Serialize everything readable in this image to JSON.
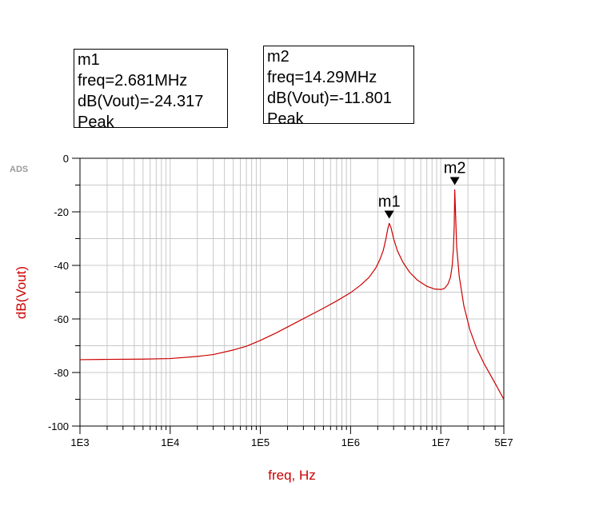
{
  "brand": "ADS",
  "markers": [
    {
      "name": "m1",
      "freq_label": "freq=2.681MHz",
      "value_label": "dB(Vout)=-24.317",
      "type": "Peak"
    },
    {
      "name": "m2",
      "freq_label": "freq=14.29MHz",
      "value_label": "dB(Vout)=-11.801",
      "type": "Peak"
    }
  ],
  "colors": {
    "trace": "#cc0000",
    "axis_label": "#cc0000",
    "grid": "#c8c8c8",
    "marker": "#000000"
  },
  "chart_data": {
    "type": "line",
    "title": "",
    "xlabel": "freq, Hz",
    "ylabel": "dB(Vout)",
    "xscale": "log",
    "xlim": [
      1000,
      50000000
    ],
    "ylim": [
      -100,
      0
    ],
    "x_ticks": [
      {
        "value": 1000,
        "label": "1E3"
      },
      {
        "value": 10000,
        "label": "1E4"
      },
      {
        "value": 100000,
        "label": "1E5"
      },
      {
        "value": 1000000,
        "label": "1E6"
      },
      {
        "value": 10000000,
        "label": "1E7"
      },
      {
        "value": 50000000,
        "label": "5E7"
      }
    ],
    "y_ticks": [
      {
        "value": 0,
        "label": "0"
      },
      {
        "value": -20,
        "label": "-20"
      },
      {
        "value": -40,
        "label": "-40"
      },
      {
        "value": -60,
        "label": "-60"
      },
      {
        "value": -80,
        "label": "-80"
      },
      {
        "value": -100,
        "label": "-100"
      }
    ],
    "grid": true,
    "series": [
      {
        "color": "#cc0000",
        "x": [
          1000,
          2000,
          5000,
          10000,
          20000,
          30000,
          50000,
          70000,
          100000,
          150000,
          200000,
          300000,
          500000,
          700000,
          1000000,
          1300000,
          1600000,
          1900000,
          2100000,
          2300000,
          2450000,
          2580000,
          2681000,
          2800000,
          3000000,
          3300000,
          3800000,
          4500000,
          5500000,
          7000000,
          8500000,
          10000000,
          11000000,
          12000000,
          12800000,
          13400000,
          13800000,
          14100000,
          14290000,
          14500000,
          15000000,
          16000000,
          18000000,
          21000000,
          25000000,
          30000000,
          40000000,
          50000000
        ],
        "y": [
          -75.2,
          -75.1,
          -75.0,
          -74.8,
          -74.0,
          -73.3,
          -71.6,
          -70.2,
          -68.0,
          -65.2,
          -63.0,
          -59.9,
          -56.0,
          -53.3,
          -50.2,
          -47.3,
          -44.5,
          -41.0,
          -38.0,
          -34.5,
          -30.5,
          -26.5,
          -24.3,
          -25.8,
          -30.0,
          -34.5,
          -38.8,
          -42.5,
          -45.5,
          -47.8,
          -48.8,
          -49.0,
          -48.6,
          -47.0,
          -44.5,
          -40.0,
          -34.0,
          -25.0,
          -11.8,
          -18.0,
          -33.0,
          -44.0,
          -55.0,
          -64.0,
          -71.0,
          -76.5,
          -84.0,
          -90.0
        ]
      }
    ],
    "markers": [
      {
        "name": "m1",
        "x": 2681000,
        "y": -24.317
      },
      {
        "name": "m2",
        "x": 14290000,
        "y": -11.801
      }
    ]
  }
}
